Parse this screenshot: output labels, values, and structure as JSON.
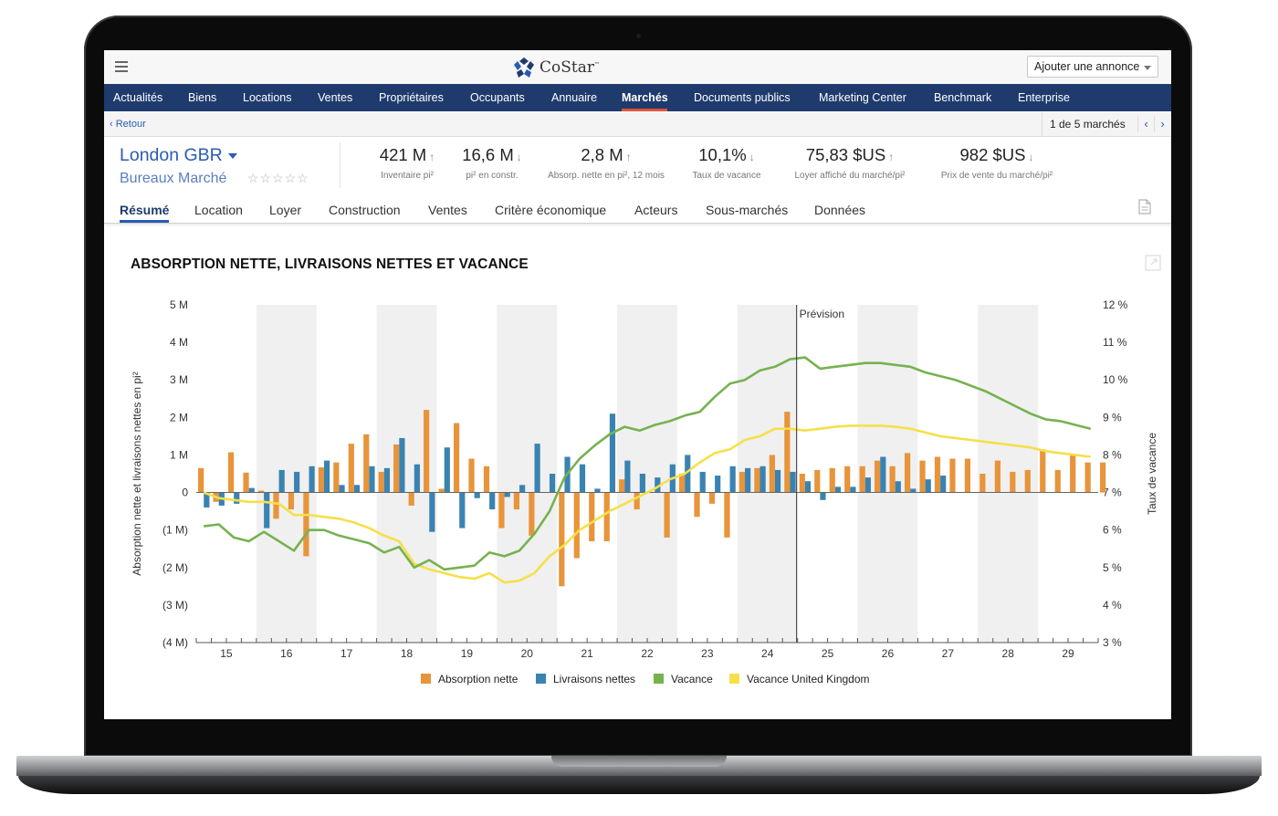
{
  "app": {
    "brand": "CoStar",
    "brand_tm": "™",
    "add_listing": "Ajouter une annonce"
  },
  "nav": {
    "items": [
      "Actualités",
      "Biens",
      "Locations",
      "Ventes",
      "Propriétaires",
      "Occupants",
      "Annuaire",
      "Marchés",
      "Documents publics",
      "Marketing Center",
      "Benchmark",
      "Enterprise"
    ],
    "active": "Marchés"
  },
  "subbar": {
    "back": "Retour",
    "pager": "1 de 5 marchés",
    "prev": "‹",
    "next": "›"
  },
  "market": {
    "name": "London GBR",
    "type": "Bureaux Marché",
    "stars": "☆☆☆☆☆",
    "metrics": [
      {
        "value": "421 M",
        "trend": "up",
        "label": "Inventaire pi²"
      },
      {
        "value": "16,6 M",
        "trend": "down",
        "label": "pi² en constr."
      },
      {
        "value": "2,8 M",
        "trend": "up",
        "label": "Absorp. nette en pi², 12 mois"
      },
      {
        "value": "10,1%",
        "trend": "down",
        "label": "Taux de vacance"
      },
      {
        "value": "75,83 $US",
        "trend": "up",
        "label": "Loyer affiché du marché/pi²"
      },
      {
        "value": "982 $US",
        "trend": "down",
        "label": "Prix de vente du marché/pi²"
      }
    ]
  },
  "tabs": {
    "items": [
      "Résumé",
      "Location",
      "Loyer",
      "Construction",
      "Ventes",
      "Critère économique",
      "Acteurs",
      "Sous-marchés",
      "Données"
    ],
    "active": "Résumé"
  },
  "icons": {
    "menu": "hamburger-icon",
    "document": "document-icon",
    "expand": "expand-icon",
    "logo": "costar-logo-icon"
  },
  "colors": {
    "nav": "#1f3b6d",
    "link": "#2a5bb5",
    "accent": "#e0533a",
    "absorption": "#e8943a",
    "deliveries": "#3a83b1",
    "vacancy": "#76b250",
    "vacancy_uk": "#f5e04a"
  },
  "chart_data": {
    "type": "bar+line",
    "title": "ABSORPTION NETTE, LIVRAISONS NETTES ET VACANCE",
    "ylabel": "Absorption nette et livraisons nettes en pi²",
    "ylabel_right": "Taux de vacance",
    "forecast_label": "Prévision",
    "forecast_start_index": 40,
    "ylim": [
      -4,
      5
    ],
    "ylim_right": [
      3,
      12
    ],
    "yticks_left": [
      "5 M",
      "4 M",
      "3 M",
      "2 M",
      "1 M",
      "0",
      "(1 M)",
      "(2 M)",
      "(3 M)",
      "(4 M)"
    ],
    "yticks_right": [
      "12 %",
      "11 %",
      "10 %",
      "9 %",
      "8 %",
      "7 %",
      "6 %",
      "5 %",
      "4 %",
      "3 %"
    ],
    "year_labels": [
      "15",
      "16",
      "17",
      "18",
      "19",
      "20",
      "21",
      "22",
      "23",
      "24",
      "25",
      "26",
      "27",
      "28",
      "29"
    ],
    "periods_per_year": 4,
    "first_period": "2015 Q1",
    "series": [
      {
        "name": "Absorption nette",
        "unit": "M pi²",
        "values": [
          0.65,
          -0.25,
          1.07,
          0.53,
          0.05,
          -0.7,
          -0.45,
          -1.7,
          0.67,
          0.8,
          1.3,
          1.55,
          0.55,
          1.28,
          -0.35,
          2.2,
          0.1,
          1.85,
          0.9,
          0.7,
          -0.95,
          -0.45,
          -1.15,
          0.0,
          -2.5,
          -1.75,
          -1.3,
          -1.3,
          0.35,
          -0.45,
          0.0,
          -1.2,
          0.5,
          -0.65,
          -0.3,
          -1.2,
          0.55,
          0.65,
          1.0,
          2.15,
          0.5,
          0.6,
          0.65,
          0.7,
          0.7,
          0.85,
          0.7,
          1.05,
          0.85,
          0.95,
          0.9,
          0.9,
          0.5,
          0.85,
          0.55,
          0.6,
          1.15,
          0.6,
          1.0,
          0.8,
          0.8
        ]
      },
      {
        "name": "Livraisons nettes",
        "unit": "M pi²",
        "values": [
          -0.4,
          -0.35,
          -0.3,
          0.12,
          -0.95,
          0.6,
          0.55,
          0.7,
          0.85,
          0.2,
          0.2,
          0.7,
          0.65,
          1.45,
          0.75,
          -1.05,
          1.2,
          -0.95,
          -0.15,
          -0.45,
          -0.12,
          0.2,
          1.3,
          0.5,
          0.95,
          0.75,
          0.1,
          2.1,
          0.85,
          0.5,
          0.4,
          0.75,
          1.0,
          0.55,
          0.45,
          0.7,
          0.65,
          0.7,
          0.6,
          0.55,
          0.3,
          -0.2,
          0.15,
          0.15,
          0.4,
          0.95,
          0.3,
          0.1,
          0.35,
          0.45
        ]
      },
      {
        "name": "Vacance",
        "unit": "%",
        "values": [
          6.1,
          6.15,
          5.8,
          5.7,
          5.95,
          5.7,
          5.45,
          6.0,
          6.0,
          5.85,
          5.75,
          5.65,
          5.4,
          5.55,
          5.0,
          5.2,
          4.95,
          5.0,
          5.05,
          5.4,
          5.3,
          5.45,
          5.9,
          6.5,
          7.4,
          7.9,
          8.25,
          8.55,
          8.75,
          8.65,
          8.8,
          8.9,
          9.05,
          9.15,
          9.55,
          9.9,
          10.0,
          10.25,
          10.35,
          10.55,
          10.6,
          10.3,
          10.35,
          10.4,
          10.45,
          10.45,
          10.4,
          10.35,
          10.2,
          10.1,
          10.0,
          9.85,
          9.7,
          9.5,
          9.3,
          9.1,
          8.95,
          8.9,
          8.8,
          8.7
        ]
      },
      {
        "name": "Vacance United Kingdom",
        "unit": "%",
        "values": [
          7.0,
          6.85,
          6.8,
          6.75,
          6.75,
          6.7,
          6.4,
          6.4,
          6.35,
          6.3,
          6.2,
          6.05,
          5.85,
          5.7,
          5.1,
          4.95,
          4.85,
          4.75,
          4.7,
          4.85,
          4.6,
          4.65,
          4.85,
          5.3,
          5.6,
          6.0,
          6.25,
          6.5,
          6.7,
          6.9,
          7.1,
          7.35,
          7.5,
          7.8,
          8.05,
          8.15,
          8.4,
          8.5,
          8.7,
          8.7,
          8.65,
          8.7,
          8.75,
          8.78,
          8.78,
          8.78,
          8.75,
          8.7,
          8.6,
          8.5,
          8.45,
          8.4,
          8.35,
          8.3,
          8.25,
          8.2,
          8.1,
          8.05,
          8.0,
          7.95
        ]
      }
    ],
    "grid": false,
    "legend_position": "bottom"
  }
}
